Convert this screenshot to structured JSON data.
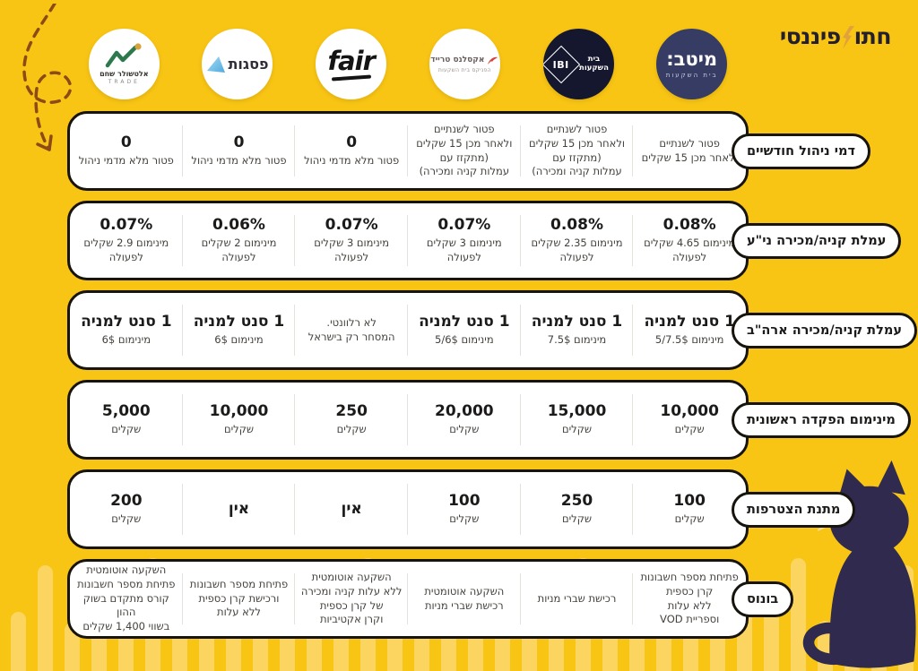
{
  "brand": {
    "part1": "חתו",
    "part2": "פיננסי"
  },
  "colors": {
    "page_bg": "#F8C514",
    "card_bg": "#FFFFFF",
    "card_border": "#17130D",
    "text_dark": "#1C1B1A",
    "text_muted": "#44413C",
    "divider": "#E4E2DD",
    "navy_meitav": "#363C63",
    "navy_ibi": "#15172F",
    "stripe": "#FBD55F",
    "arrow_brown": "#8C4A17",
    "cat_purple": "#2F2A4E",
    "brand_gold": "#E2A23B",
    "psagot_blue": "#4EA9DE",
    "alt_green": "#2C7A4B",
    "exc_red": "#D5443C"
  },
  "logos": {
    "meitav": {
      "title": "מיטב:",
      "subtitle": "בית השקעות"
    },
    "ibi": {
      "title": "IBI",
      "subtitle": "בית\nהשקעות"
    },
    "excellence": {
      "title": "אקסלנס טרייד",
      "subtitle": "הפניקס בית השקעות"
    },
    "fair": {
      "title": "fair"
    },
    "psagot": {
      "title": "פסגות"
    },
    "altshuler": {
      "title": "אלטשולר שחם",
      "subtitle": "TRADE"
    }
  },
  "chart_data": {
    "type": "table",
    "direction": "rtl",
    "columns": [
      "מיטב בית השקעות",
      "IBI בית השקעות",
      "אקסלנס טרייד הפניקס בית השקעות",
      "fair",
      "פסגות",
      "אלטשולר שחם TRADE"
    ],
    "rows": [
      {
        "label": "דמי ניהול חודשיים",
        "cells": [
          {
            "big": "",
            "small": "פטור לשנתיים\nולאחר מכן 15 שקלים"
          },
          {
            "big": "",
            "small": "פטור לשנתיים\nולאחר מכן 15 שקלים\n(מתקזז עם\nעמלות קניה ומכירה)"
          },
          {
            "big": "",
            "small": "פטור לשנתיים\nולאחר מכן 15 שקלים\n(מתקזז עם\nעמלות קניה ומכירה)"
          },
          {
            "big": "0",
            "small": "פטור מלא מדמי ניהול"
          },
          {
            "big": "0",
            "small": "פטור מלא מדמי ניהול"
          },
          {
            "big": "0",
            "small": "פטור מלא מדמי ניהול"
          }
        ]
      },
      {
        "label": "עמלת קניה/מכירה ני\"ע",
        "cells": [
          {
            "big": "0.08%",
            "small": "מינימום 4.65 שקלים\nלפעולה"
          },
          {
            "big": "0.08%",
            "small": "מינימום 2.35 שקלים\nלפעולה"
          },
          {
            "big": "0.07%",
            "small": "מינימום 3 שקלים\nלפעולה"
          },
          {
            "big": "0.07%",
            "small": "מינימום 3 שקלים\nלפעולה"
          },
          {
            "big": "0.06%",
            "small": "מינימום 2 שקלים\nלפעולה"
          },
          {
            "big": "0.07%",
            "small": "מינימום 2.9 שקלים\nלפעולה"
          }
        ]
      },
      {
        "label": "עמלת קניה/מכירה ארה\"ב",
        "cells": [
          {
            "big": "1 סנט למניה",
            "small": "מינימום 5/7.5$"
          },
          {
            "big": "1 סנט למניה",
            "small": "מינימום 7.5$"
          },
          {
            "big": "1 סנט למניה",
            "small": "מינימום 5/6$"
          },
          {
            "big": "",
            "small": "לא רלוונטי.\nהמסחר רק בישראל"
          },
          {
            "big": "1 סנט למניה",
            "small": "מינימום 6$"
          },
          {
            "big": "1 סנט למניה",
            "small": "מינימום 6$"
          }
        ]
      },
      {
        "label": "מינימום הפקדה ראשונית",
        "cells": [
          {
            "big": "10,000",
            "small": "שקלים"
          },
          {
            "big": "15,000",
            "small": "שקלים"
          },
          {
            "big": "20,000",
            "small": "שקלים"
          },
          {
            "big": "250",
            "small": "שקלים"
          },
          {
            "big": "10,000",
            "small": "שקלים"
          },
          {
            "big": "5,000",
            "small": "שקלים"
          }
        ]
      },
      {
        "label": "מתנת הצטרפות",
        "cells": [
          {
            "big": "100",
            "small": "שקלים"
          },
          {
            "big": "250",
            "small": "שקלים"
          },
          {
            "big": "100",
            "small": "שקלים"
          },
          {
            "big": "אין",
            "small": ""
          },
          {
            "big": "אין",
            "small": ""
          },
          {
            "big": "200",
            "small": "שקלים"
          }
        ]
      },
      {
        "label": "בונוס",
        "cells": [
          {
            "big": "",
            "small": "פתיחת מספר חשבונות\nקרן כספית\nללא עלות\nוספריית VOD"
          },
          {
            "big": "",
            "small": "רכישת שברי מניות"
          },
          {
            "big": "",
            "small": "השקעה אוטומטית\nרכישת שברי מניות"
          },
          {
            "big": "",
            "small": "השקעה אוטומטית\nללא עלות קניה ומכירה\nשל קרן כספית\nוקרן אקטיביות"
          },
          {
            "big": "",
            "small": "פתיחת מספר חשבונות\nורכישת קרן כספית\nללא עלות"
          },
          {
            "big": "",
            "small": "השקעה אוטומטית\nפתיחת מספר חשבונות\nקורס מתקדם בשוק ההון\nבשווי 1,400 שקלים"
          }
        ]
      }
    ]
  }
}
